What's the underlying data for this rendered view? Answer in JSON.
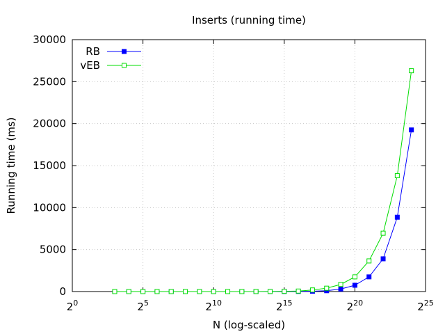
{
  "chart_data": {
    "type": "line",
    "title": "Inserts (running time)",
    "xlabel": "N (log-scaled)",
    "ylabel": "Running time (ms)",
    "x_scale": "log2",
    "xlim": [
      1,
      33554432
    ],
    "ylim": [
      0,
      30000
    ],
    "grid": true,
    "legend_position": "top-left",
    "x_tick_labels": [
      {
        "base": "2",
        "exp": "0"
      },
      {
        "base": "2",
        "exp": "5"
      },
      {
        "base": "2",
        "exp": "10"
      },
      {
        "base": "2",
        "exp": "15"
      },
      {
        "base": "2",
        "exp": "20"
      },
      {
        "base": "2",
        "exp": "25"
      }
    ],
    "y_tick_labels": [
      "0",
      "5000",
      "10000",
      "15000",
      "20000",
      "25000",
      "30000"
    ],
    "x": [
      8,
      16,
      32,
      64,
      128,
      256,
      512,
      1024,
      2048,
      4096,
      8192,
      16384,
      32768,
      65536,
      131072,
      262144,
      524288,
      1048576,
      2097152,
      4194304,
      8388608,
      16777216
    ],
    "series": [
      {
        "name": "RB",
        "color": "#0000ff",
        "marker": "filled-square",
        "values": [
          0,
          0,
          0,
          0,
          0,
          0,
          0,
          0,
          0,
          0,
          0,
          5,
          15,
          20,
          40,
          100,
          300,
          750,
          1750,
          3900,
          8850,
          19250
        ]
      },
      {
        "name": "vEB",
        "color": "#00dd00",
        "marker": "open-square",
        "values": [
          0,
          0,
          0,
          0,
          0,
          0,
          0,
          0,
          0,
          0,
          5,
          10,
          30,
          60,
          190,
          400,
          850,
          1750,
          3650,
          6950,
          13800,
          26300
        ]
      }
    ]
  }
}
